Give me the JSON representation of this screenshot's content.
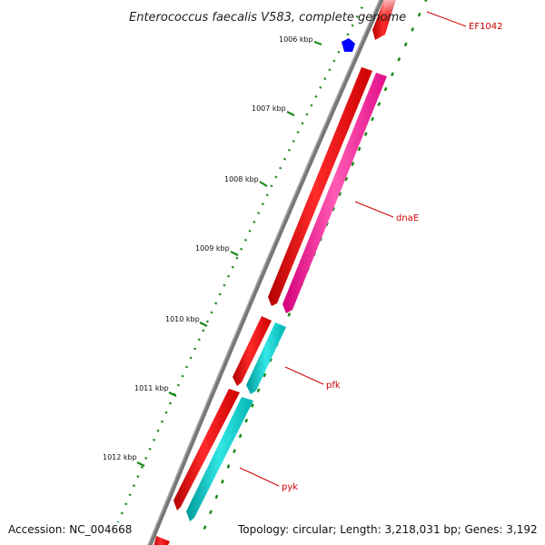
{
  "title": "Enterococcus faecalis V583, complete genome",
  "accession": "Accession: NC_004668",
  "summary": "Topology: circular; Length: 3,218,031 bp; Genes: 3,192",
  "ticks": [
    "1006 kbp",
    "1007 kbp",
    "1008 kbp",
    "1009 kbp",
    "1010 kbp",
    "1011 kbp",
    "1012 kbp"
  ],
  "gene_labels": [
    "EF1042",
    "dnaE",
    "pfk",
    "pyk"
  ],
  "colors": {
    "backbone": "#777777",
    "cds_forward": "#ff0000",
    "gene_magenta": "#ff1493",
    "gene_cyan": "#00c8c8",
    "marker_blue": "#0000ff",
    "tick_green": "#1a8a1a",
    "label_line": "#cc0000"
  }
}
